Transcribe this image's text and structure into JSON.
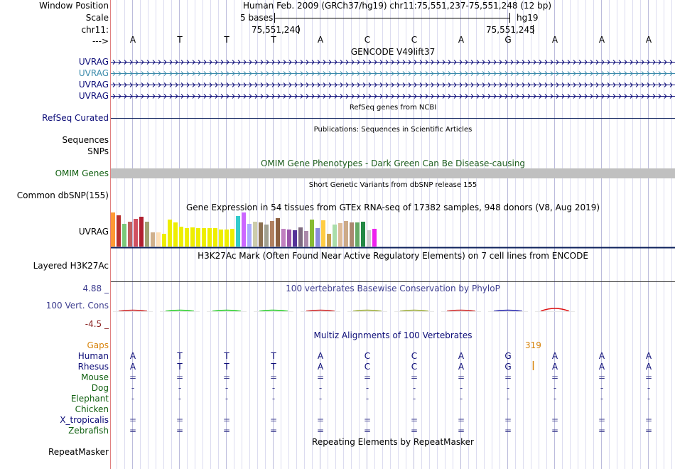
{
  "header": {
    "window_position_label": "Window Position",
    "window_position_value": "Human Feb. 2009 (GRCh37/hg19)   chr11:75,551,237-75,551,248 (12 bp)",
    "scale_label": "Scale",
    "scale_bar_text": "5 bases",
    "scale_assembly": "hg19",
    "chrom_label": "chr11:",
    "coord_1": "75,551,240",
    "coord_2": "75,551,245",
    "arrow_label": "--->"
  },
  "sequence": [
    "A",
    "T",
    "T",
    "T",
    "A",
    "C",
    "C",
    "A",
    "G",
    "A",
    "A",
    "A"
  ],
  "tracks": {
    "gencode_title": "GENCODE V49lift37",
    "gencode_genes": [
      "UVRAG",
      "UVRAG",
      "UVRAG",
      "UVRAG"
    ],
    "refseq_title": "RefSeq genes from NCBI",
    "refseq_label": "RefSeq Curated",
    "pubs_title": "Publications: Sequences in Scientific Articles",
    "pubs_labels": [
      "Sequences",
      "SNPs"
    ],
    "omim_title": "OMIM Gene Phenotypes - Dark Green Can Be Disease-causing",
    "omim_label": "OMIM Genes",
    "dbsnp_title": "Short Genetic Variants from dbSNP release 155",
    "dbsnp_label": "Common dbSNP(155)",
    "gtex_title": "Gene Expression in 54 tissues from GTEx RNA-seq of 17382 samples, 948 donors (V8, Aug 2019)",
    "gtex_label": "UVRAG",
    "h3k27_title": "H3K27Ac Mark (Often Found Near Active Regulatory Elements) on 7 cell lines from ENCODE",
    "h3k27_label": "Layered H3K27Ac",
    "cons_title": "100 vertebrates Basewise Conservation by PhyloP",
    "cons_label": "100 Vert. Cons",
    "cons_max": "4.88 _",
    "cons_min": "-4.5 _",
    "multiz_title": "Multiz Alignments of 100 Vertebrates",
    "gaps_label": "Gaps",
    "gap_count": "319",
    "species": [
      {
        "name": "Human",
        "row": [
          "A",
          "T",
          "T",
          "T",
          "A",
          "C",
          "C",
          "A",
          "G",
          "A",
          "A",
          "A"
        ]
      },
      {
        "name": "Rhesus",
        "row": [
          "A",
          "T",
          "T",
          "T",
          "A",
          "C",
          "C",
          "A",
          "G",
          "A",
          "A",
          "A"
        ]
      },
      {
        "name": "Mouse",
        "row": [
          "=",
          "=",
          "=",
          "=",
          "=",
          "=",
          "=",
          "=",
          "=",
          "=",
          "=",
          "="
        ]
      },
      {
        "name": "Dog",
        "row": [
          "-",
          "-",
          "-",
          "-",
          "-",
          "-",
          "-",
          "-",
          "-",
          "-",
          "-",
          "-"
        ]
      },
      {
        "name": "Elephant",
        "row": [
          "-",
          "-",
          "-",
          "-",
          "-",
          "-",
          "-",
          "-",
          "-",
          "-",
          "-",
          "-"
        ]
      },
      {
        "name": "Chicken",
        "row": [
          "",
          "",
          "",
          "",
          "",
          "",
          "",
          "",
          "",
          "",
          "",
          ""
        ]
      },
      {
        "name": "X_tropicalis",
        "row": [
          "=",
          "=",
          "=",
          "=",
          "=",
          "=",
          "=",
          "=",
          "=",
          "=",
          "=",
          "="
        ]
      },
      {
        "name": "Zebrafish",
        "row": [
          "=",
          "=",
          "=",
          "=",
          "=",
          "=",
          "=",
          "=",
          "=",
          "=",
          "=",
          "="
        ]
      }
    ],
    "repeat_title": "Repeating Elements by RepeatMasker",
    "repeat_label": "RepeatMasker"
  },
  "gtex_colors": [
    "#FF9933",
    "#B7302F",
    "#7AC97A",
    "#C06060",
    "#D05060",
    "#B02030",
    "#A0A070",
    "#D0B08C",
    "#FFE0B8",
    "#EEEE00",
    "#EEEE00",
    "#EEEE00",
    "#EEEE00",
    "#EEEE00",
    "#EEEE00",
    "#EEEE00",
    "#EEEE00",
    "#EEEE00",
    "#EEEE00",
    "#EEEE00",
    "#EEEE00",
    "#EEEE00",
    "#33CCCC",
    "#CC66FF",
    "#AAAAFF",
    "#CCCCAA",
    "#8C7050",
    "#A0A090",
    "#B08060",
    "#8C6040",
    "#C080C0",
    "#9955AA",
    "#553399",
    "#7E6A80",
    "#AA88AA",
    "#88BB33",
    "#8B8BDD",
    "#FFCC44",
    "#C8A050",
    "#AADDAA",
    "#DDBB99",
    "#CCAA88",
    "#AA8870",
    "#66AA66",
    "#228844",
    "#CCCCCC",
    "#EE22EE"
  ],
  "gtex_values": [
    48,
    44,
    32,
    35,
    39,
    42,
    35,
    20,
    20,
    18,
    38,
    34,
    28,
    26,
    27,
    26,
    26,
    26,
    26,
    24,
    24,
    25,
    43,
    48,
    32,
    35,
    34,
    31,
    36,
    40,
    25,
    24,
    23,
    27,
    22,
    38,
    26,
    37,
    18,
    31,
    33,
    36,
    34,
    34,
    35,
    23,
    25
  ]
}
